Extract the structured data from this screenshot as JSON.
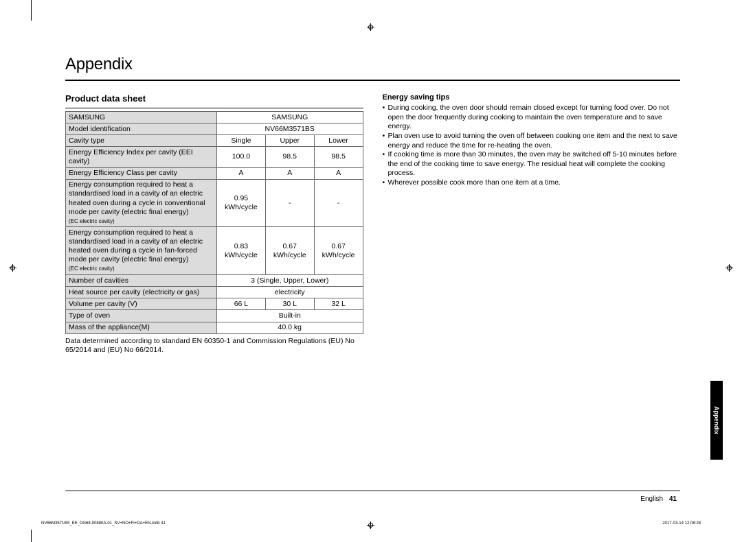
{
  "title": "Appendix",
  "section": "Product data sheet",
  "table": {
    "brandLabel": "SAMSUNG",
    "brandValue": "SAMSUNG",
    "modelLabel": "Model identification",
    "modelValue": "NV66M3571BS",
    "cavityLabel": "Cavity type",
    "cavityCols": [
      "Single",
      "Upper",
      "Lower"
    ],
    "eeiLabel": "Energy Efficiency Index per cavity (EEI cavity)",
    "eei": [
      "100.0",
      "98.5",
      "98.5"
    ],
    "eecLabel": "Energy Efficiency Class per cavity",
    "eec": [
      "A",
      "A",
      "A"
    ],
    "conv1": "Energy consumption required to heat a standardised load in a cavity of an electric heated oven during a cycle in conventional mode per cavity (electric final energy)",
    "convSmall": "(EC electric cavity)",
    "conv": [
      "0.95 kWh/cycle",
      "-",
      "-"
    ],
    "fan1": "Energy consumption required to heat a standardised load in a cavity of an electric heated oven during a cycle in fan-forced mode per cavity (electric final energy)",
    "fanSmall": "(EC electric cavity)",
    "fan": [
      "0.83 kWh/cycle",
      "0.67 kWh/cycle",
      "0.67 kWh/cycle"
    ],
    "numCavLabel": "Number of cavities",
    "numCav": "3 (Single, Upper, Lower)",
    "heatLabel": "Heat source per cavity (electricity or gas)",
    "heat": "electricity",
    "volLabel": "Volume per cavity (V)",
    "vol": [
      "66 L",
      "30 L",
      "32 L"
    ],
    "typeLabel": "Type of oven",
    "type": "Built-in",
    "massLabel": "Mass of the appliance(M)",
    "mass": "40.0 kg"
  },
  "footnote": "Data determined according to standard EN 60350-1 and Commission Regulations (EU) No 65/2014 and (EU) No 66/2014.",
  "tipsHead": "Energy saving tips",
  "tips": [
    "During cooking, the oven door should remain closed except for turning food over. Do not open the door frequently during cooking to maintain the oven temperature and to save energy.",
    "Plan oven use to avoid turning the oven off between cooking one item and the next to save energy and reduce the time for re-heating the oven.",
    "If cooking time is more than 30 minutes, the oven may be switched off 5-10 minutes before the end of the cooking time to save energy. The residual heat will complete the cooking process.",
    "Wherever possible cook more than one item at a time."
  ],
  "sideTab": "Appendix",
  "footer": {
    "lang": "English",
    "page": "41"
  },
  "micro": {
    "left": "NV66M3571BS_EE_DG68-00880A-01_SV+NO+FI+DA+EN.indb   41",
    "right": "2017-03-14   12:06:28"
  }
}
